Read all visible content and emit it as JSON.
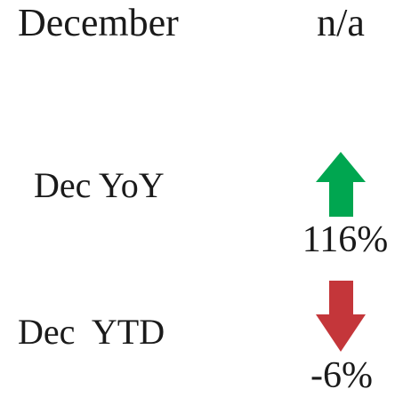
{
  "rows": [
    {
      "label": "December",
      "value": "n/a"
    },
    {
      "label": "Dec YoY",
      "arrow": "up",
      "arrow_color": "#00a650",
      "value": "116%"
    },
    {
      "label": "Dec  YTD",
      "arrow": "down",
      "arrow_color": "#c4363a",
      "value": "-6%"
    }
  ]
}
